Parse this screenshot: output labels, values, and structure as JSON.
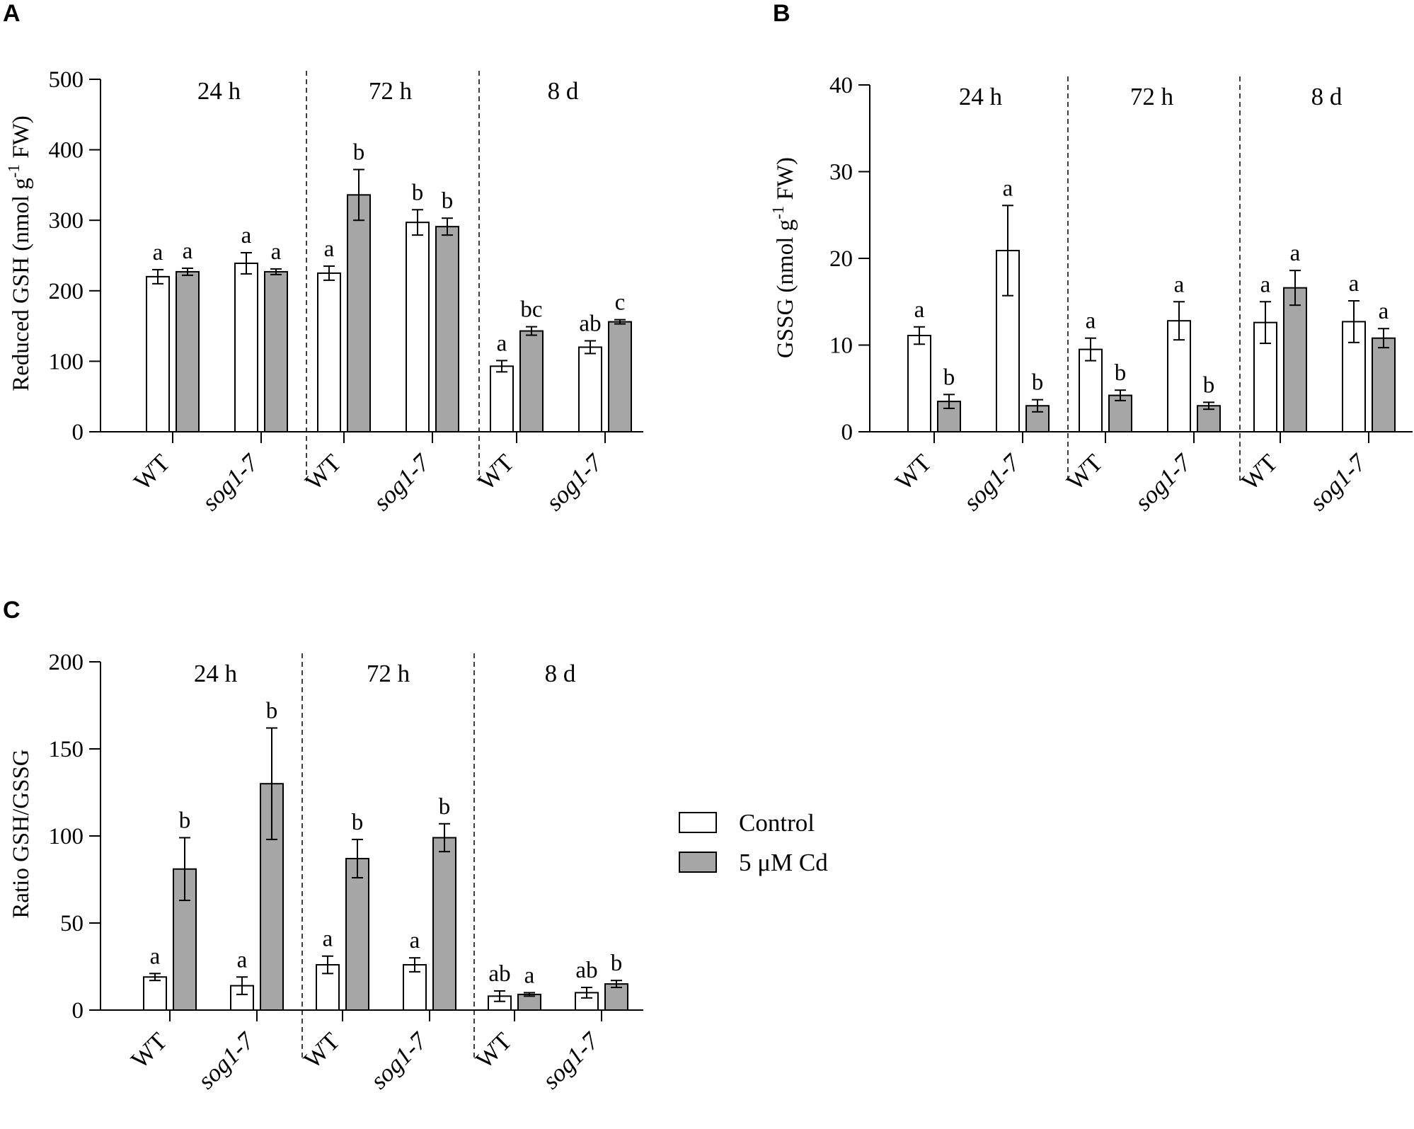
{
  "colors": {
    "control": "#ffffff",
    "cd": "#a6a6a6",
    "axis": "#000000"
  },
  "legend": {
    "control": "Control",
    "cd": "5 μM Cd"
  },
  "chart_data": [
    {
      "id": "A",
      "panel_label": "A",
      "type": "bar",
      "ylabel_main": "Reduced GSH (nmol g",
      "ylabel_sup": "-1",
      "ylabel_tail": " FW)",
      "ylim": [
        0,
        500
      ],
      "yticks": [
        0,
        100,
        200,
        300,
        400,
        500
      ],
      "series_names": [
        "Control",
        "5 μM Cd"
      ],
      "periods": [
        {
          "label": "24 h",
          "groups": [
            {
              "label": "WT",
              "italic": false,
              "control": {
                "value": 220,
                "err": 10,
                "sig": "a"
              },
              "cd": {
                "value": 227,
                "err": 5,
                "sig": "a"
              }
            },
            {
              "label": "sog1-7",
              "italic": true,
              "control": {
                "value": 239,
                "err": 15,
                "sig": "a"
              },
              "cd": {
                "value": 227,
                "err": 4,
                "sig": "a"
              }
            }
          ]
        },
        {
          "label": "72 h",
          "groups": [
            {
              "label": "WT",
              "italic": false,
              "control": {
                "value": 225,
                "err": 10,
                "sig": "a"
              },
              "cd": {
                "value": 336,
                "err": 36,
                "sig": "b"
              }
            },
            {
              "label": "sog1-7",
              "italic": true,
              "control": {
                "value": 297,
                "err": 18,
                "sig": "b"
              },
              "cd": {
                "value": 291,
                "err": 12,
                "sig": "b"
              }
            }
          ]
        },
        {
          "label": "8 d",
          "groups": [
            {
              "label": "WT",
              "italic": false,
              "control": {
                "value": 93,
                "err": 8,
                "sig": "a"
              },
              "cd": {
                "value": 143,
                "err": 6,
                "sig": "bc"
              }
            },
            {
              "label": "sog1-7",
              "italic": true,
              "control": {
                "value": 120,
                "err": 9,
                "sig": "ab"
              },
              "cd": {
                "value": 156,
                "err": 3,
                "sig": "c"
              }
            }
          ]
        }
      ]
    },
    {
      "id": "B",
      "panel_label": "B",
      "type": "bar",
      "ylabel_main": "GSSG (nmol g",
      "ylabel_sup": "-1",
      "ylabel_tail": " FW)",
      "ylim": [
        0,
        40
      ],
      "yticks": [
        0,
        10,
        20,
        30,
        40
      ],
      "series_names": [
        "Control",
        "5 μM Cd"
      ],
      "periods": [
        {
          "label": "24 h",
          "groups": [
            {
              "label": "WT",
              "italic": false,
              "control": {
                "value": 11.1,
                "err": 1.0,
                "sig": "a"
              },
              "cd": {
                "value": 3.5,
                "err": 0.8,
                "sig": "b"
              }
            },
            {
              "label": "sog1-7",
              "italic": true,
              "control": {
                "value": 20.9,
                "err": 5.2,
                "sig": "a"
              },
              "cd": {
                "value": 3.0,
                "err": 0.7,
                "sig": "b"
              }
            }
          ]
        },
        {
          "label": "72 h",
          "groups": [
            {
              "label": "WT",
              "italic": false,
              "control": {
                "value": 9.5,
                "err": 1.3,
                "sig": "a"
              },
              "cd": {
                "value": 4.2,
                "err": 0.6,
                "sig": "b"
              }
            },
            {
              "label": "sog1-7",
              "italic": true,
              "control": {
                "value": 12.8,
                "err": 2.2,
                "sig": "a"
              },
              "cd": {
                "value": 3.0,
                "err": 0.4,
                "sig": "b"
              }
            }
          ]
        },
        {
          "label": "8 d",
          "groups": [
            {
              "label": "WT",
              "italic": false,
              "control": {
                "value": 12.6,
                "err": 2.4,
                "sig": "a"
              },
              "cd": {
                "value": 16.6,
                "err": 2.0,
                "sig": "a"
              }
            },
            {
              "label": "sog1-7",
              "italic": true,
              "control": {
                "value": 12.7,
                "err": 2.4,
                "sig": "a"
              },
              "cd": {
                "value": 10.8,
                "err": 1.1,
                "sig": "a"
              }
            }
          ]
        }
      ]
    },
    {
      "id": "C",
      "panel_label": "C",
      "type": "bar",
      "ylabel_main": "Ratio GSH/GSSG",
      "ylabel_sup": "",
      "ylabel_tail": "",
      "ylim": [
        0,
        200
      ],
      "yticks": [
        0,
        50,
        100,
        150,
        200
      ],
      "series_names": [
        "Control",
        "5 μM Cd"
      ],
      "periods": [
        {
          "label": "24 h",
          "groups": [
            {
              "label": "WT",
              "italic": false,
              "control": {
                "value": 19,
                "err": 2,
                "sig": "a"
              },
              "cd": {
                "value": 81,
                "err": 18,
                "sig": "b"
              }
            },
            {
              "label": "sog1-7",
              "italic": true,
              "control": {
                "value": 14,
                "err": 5,
                "sig": "a"
              },
              "cd": {
                "value": 130,
                "err": 32,
                "sig": "b"
              }
            }
          ]
        },
        {
          "label": "72 h",
          "groups": [
            {
              "label": "WT",
              "italic": false,
              "control": {
                "value": 26,
                "err": 5,
                "sig": "a"
              },
              "cd": {
                "value": 87,
                "err": 11,
                "sig": "b"
              }
            },
            {
              "label": "sog1-7",
              "italic": true,
              "control": {
                "value": 26,
                "err": 4,
                "sig": "a"
              },
              "cd": {
                "value": 99,
                "err": 8,
                "sig": "b"
              }
            }
          ]
        },
        {
          "label": "8 d",
          "groups": [
            {
              "label": "WT",
              "italic": false,
              "control": {
                "value": 8,
                "err": 3,
                "sig": "ab"
              },
              "cd": {
                "value": 9,
                "err": 1,
                "sig": "a"
              }
            },
            {
              "label": "sog1-7",
              "italic": true,
              "control": {
                "value": 10,
                "err": 3,
                "sig": "ab"
              },
              "cd": {
                "value": 15,
                "err": 2,
                "sig": "b"
              }
            }
          ]
        }
      ]
    }
  ]
}
